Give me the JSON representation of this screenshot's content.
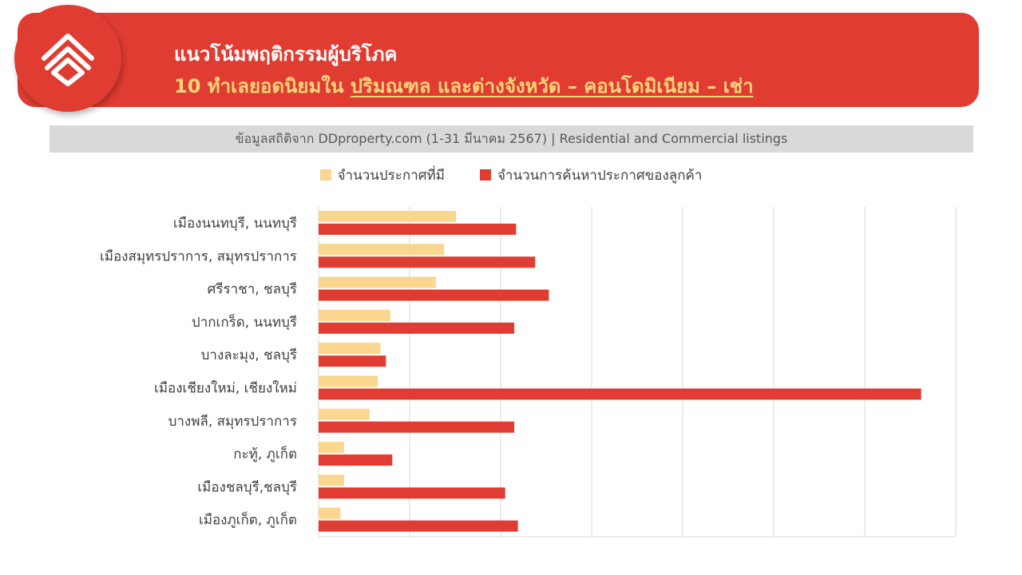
{
  "header": {
    "title_line1": "แนวโน้มพฤติกรรมผู้บริโภค",
    "title_line2_prefix": "10 ทำเลยอดนิยมใน ",
    "title_line2_underlined": "ปริมณฑล และต่างจังหวัด – คอนโดมิเนียม – เช่า"
  },
  "source_text": "ข้อมูลสถิติจาก DDproperty.com (1-31 มีนาคม 2567) | Residential and Commercial listings",
  "logo_icon": "ddproperty-house-logo-icon",
  "colors": {
    "brand_red": "#e03c31",
    "listings": "#fad68f",
    "searches": "#e03c31"
  },
  "chart_data": {
    "type": "bar",
    "orientation": "horizontal",
    "categories": [
      "เมืองนนทบุรี, นนทบุรี",
      "เมืองสมุทรปราการ, สมุทรปราการ",
      "ศรีราชา, ชลบุรี",
      "ปากเกร็ด, นนทบุรี",
      "บางละมุง, ชลบุรี",
      "เมืองเชียงใหม่, เชียงใหม่",
      "บางพลี, สมุทรปราการ",
      "กะทู้, ภูเก็ต",
      "เมืองชลบุรี,ชลบุรี",
      "เมืองภูเก็ต, ภูเก็ต"
    ],
    "series": [
      {
        "name": "จำนวนประกาศที่มี",
        "values": [
          1.51,
          1.38,
          1.29,
          0.79,
          0.68,
          0.65,
          0.56,
          0.28,
          0.28,
          0.24
        ]
      },
      {
        "name": "จำนวนการค้นหาประกาศของลูกค้า",
        "values": [
          2.17,
          2.38,
          2.53,
          2.15,
          0.74,
          6.62,
          2.15,
          0.81,
          2.05,
          2.19
        ]
      }
    ],
    "xlim": [
      0,
      7
    ],
    "grid": true,
    "tick_labels_visible": false,
    "legend_position": "top"
  }
}
